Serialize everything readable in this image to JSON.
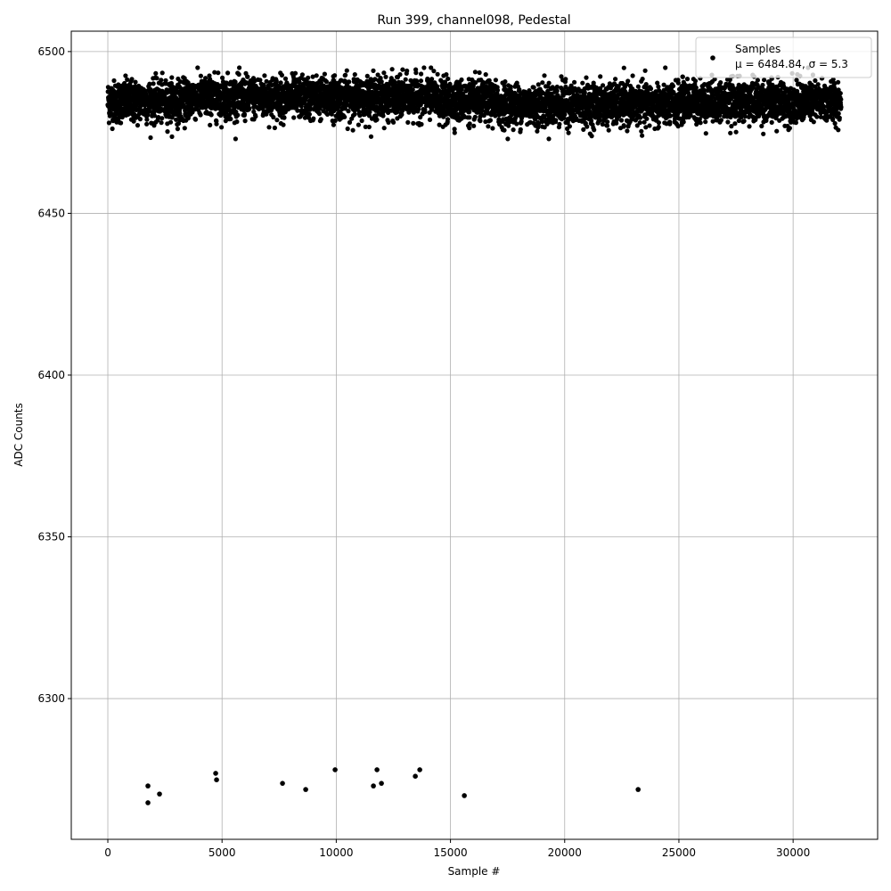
{
  "chart_data": {
    "type": "scatter",
    "title": "Run 399, channel098, Pedestal",
    "xlabel": "Sample #",
    "ylabel": "ADC Counts",
    "xlim": [
      -1600,
      33700
    ],
    "ylim": [
      6256.5,
      6506.3
    ],
    "xticks": [
      0,
      5000,
      10000,
      15000,
      20000,
      25000,
      30000
    ],
    "yticks": [
      6300,
      6350,
      6400,
      6450,
      6500
    ],
    "grid": true,
    "legend": {
      "placement": "top-right",
      "title": "Samples",
      "entry": "μ = 6484.84, σ = 5.3"
    },
    "marker_color": "#000000",
    "series": [
      {
        "name": "Samples",
        "band": {
          "x_range": [
            0,
            32100
          ],
          "mean": 6484.84,
          "sigma": 5.3,
          "y_range": [
            6473,
            6495
          ]
        },
        "outliers": [
          [
            1756,
            6273.0
          ],
          [
            1756,
            6267.8
          ],
          [
            2263,
            6270.5
          ],
          [
            4721,
            6276.9
          ],
          [
            4760,
            6274.9
          ],
          [
            7647,
            6273.8
          ],
          [
            8662,
            6271.9
          ],
          [
            9949,
            6278.0
          ],
          [
            11627,
            6273.0
          ],
          [
            11783,
            6278.0
          ],
          [
            11978,
            6273.8
          ],
          [
            13461,
            6276.0
          ],
          [
            13656,
            6278.0
          ],
          [
            15607,
            6270.0
          ],
          [
            23215,
            6271.9
          ]
        ]
      }
    ]
  }
}
